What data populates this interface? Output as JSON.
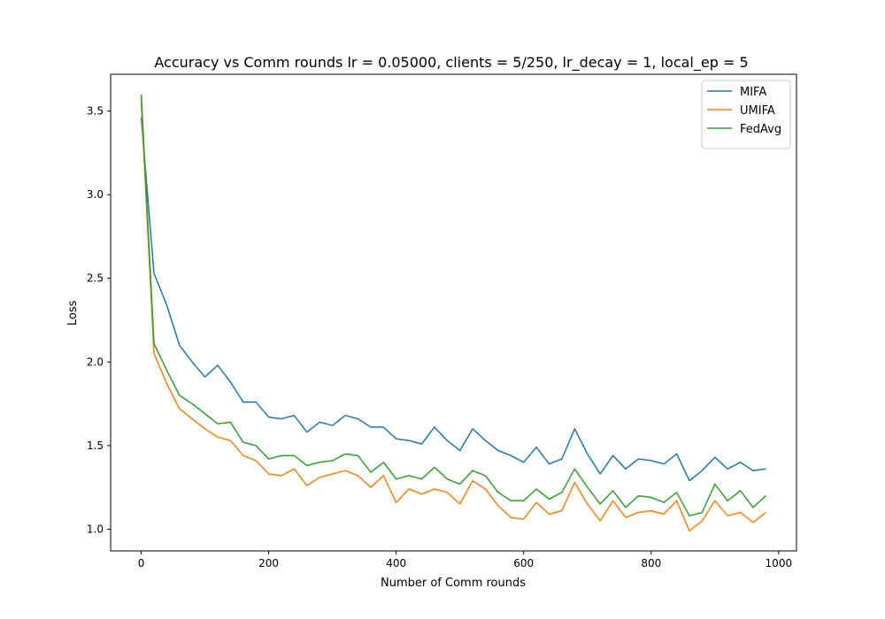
{
  "chart_data": {
    "type": "line",
    "title": "Accuracy vs Comm rounds lr = 0.05000, clients = 5/250, lr_decay = 1, local_ep = 5",
    "xlabel": "Number of Comm rounds",
    "ylabel": "Loss",
    "xlim": [
      -48,
      1028
    ],
    "ylim": [
      0.87,
      3.72
    ],
    "xticks": [
      0,
      200,
      400,
      600,
      800,
      1000
    ],
    "xtick_labels": [
      "0",
      "200",
      "400",
      "600",
      "800",
      "1000"
    ],
    "yticks": [
      1.0,
      1.5,
      2.0,
      2.5,
      3.0,
      3.5
    ],
    "ytick_labels": [
      "1.0",
      "1.5",
      "2.0",
      "2.5",
      "3.0",
      "3.5"
    ],
    "grid": false,
    "legend_position": "top-right",
    "x": [
      0,
      20,
      40,
      60,
      80,
      100,
      120,
      140,
      160,
      180,
      200,
      220,
      240,
      260,
      280,
      300,
      320,
      340,
      360,
      380,
      400,
      420,
      440,
      460,
      480,
      500,
      520,
      540,
      560,
      580,
      600,
      620,
      640,
      660,
      680,
      700,
      720,
      740,
      760,
      780,
      800,
      820,
      840,
      860,
      880,
      900,
      920,
      940,
      960,
      980
    ],
    "series": [
      {
        "name": "MIFA",
        "color": "#1f77b4",
        "values": [
          3.46,
          2.53,
          2.34,
          2.1,
          2.0,
          1.91,
          1.98,
          1.88,
          1.76,
          1.76,
          1.67,
          1.66,
          1.68,
          1.58,
          1.64,
          1.62,
          1.68,
          1.66,
          1.61,
          1.61,
          1.54,
          1.53,
          1.51,
          1.61,
          1.53,
          1.47,
          1.6,
          1.53,
          1.47,
          1.44,
          1.4,
          1.49,
          1.39,
          1.42,
          1.6,
          1.45,
          1.33,
          1.44,
          1.36,
          1.42,
          1.41,
          1.39,
          1.45,
          1.29,
          1.35,
          1.43,
          1.36,
          1.4,
          1.35,
          1.36
        ]
      },
      {
        "name": "UMIFA",
        "color": "#ff7f0e",
        "values": [
          3.55,
          2.05,
          1.87,
          1.72,
          1.66,
          1.6,
          1.55,
          1.53,
          1.44,
          1.41,
          1.33,
          1.32,
          1.36,
          1.26,
          1.31,
          1.33,
          1.35,
          1.32,
          1.25,
          1.32,
          1.16,
          1.24,
          1.21,
          1.24,
          1.22,
          1.15,
          1.29,
          1.24,
          1.14,
          1.07,
          1.06,
          1.16,
          1.09,
          1.11,
          1.28,
          1.15,
          1.05,
          1.17,
          1.07,
          1.1,
          1.11,
          1.09,
          1.17,
          0.99,
          1.05,
          1.17,
          1.08,
          1.1,
          1.04,
          1.1
        ]
      },
      {
        "name": "FedAvg",
        "color": "#2ca02c",
        "values": [
          3.6,
          2.11,
          1.95,
          1.8,
          1.75,
          1.69,
          1.63,
          1.64,
          1.52,
          1.5,
          1.42,
          1.44,
          1.44,
          1.38,
          1.4,
          1.41,
          1.45,
          1.44,
          1.34,
          1.4,
          1.3,
          1.32,
          1.3,
          1.37,
          1.3,
          1.27,
          1.35,
          1.32,
          1.22,
          1.17,
          1.17,
          1.24,
          1.18,
          1.22,
          1.36,
          1.25,
          1.15,
          1.23,
          1.13,
          1.2,
          1.19,
          1.16,
          1.22,
          1.08,
          1.1,
          1.27,
          1.17,
          1.23,
          1.13,
          1.2
        ]
      }
    ]
  }
}
